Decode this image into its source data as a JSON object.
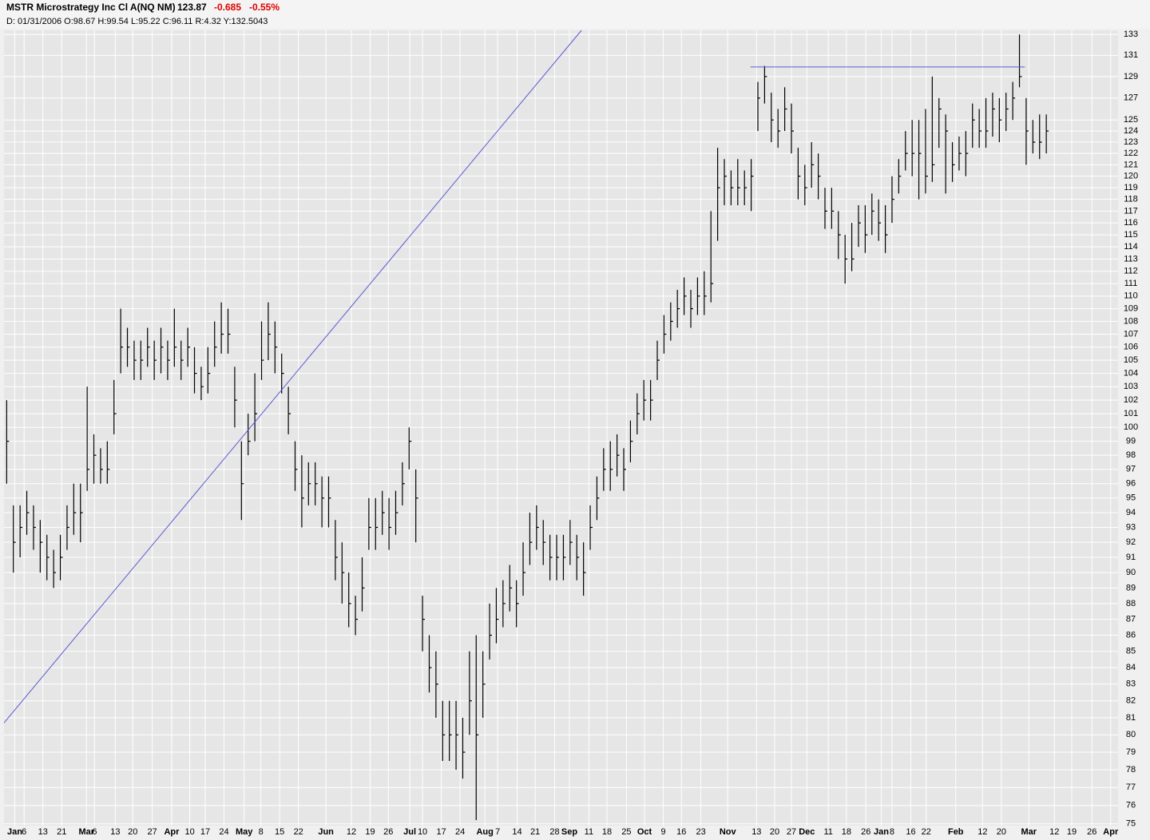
{
  "chart_data": {
    "type": "ohlc",
    "title": "MSTR Microstrategy Inc Cl A(NQ NM)",
    "last": "123.87",
    "change": "-0.685",
    "change_pct": "-0.55%",
    "info": "D: 01/31/2006 O:98.67 H:99.54 L:95.22 C:96.11 R:4.32 Y:132.5043",
    "log_scale": true,
    "grid": true,
    "color": "#000000",
    "ylim": [
      74.9,
      133.4
    ],
    "yticks": [
      75,
      76,
      77,
      78,
      79,
      80,
      81,
      82,
      83,
      84,
      85,
      86,
      87,
      88,
      89,
      90,
      91,
      92,
      93,
      94,
      95,
      96,
      97,
      98,
      99,
      100,
      101,
      102,
      103,
      104,
      105,
      106,
      107,
      108,
      109,
      110,
      111,
      112,
      113,
      114,
      115,
      116,
      117,
      118,
      119,
      120,
      121,
      122,
      123,
      124,
      125,
      127,
      129,
      131,
      133
    ],
    "xlim": [
      -0.4,
      165.7
    ],
    "xticks": [
      {
        "value": 1.2,
        "label": "Jan"
      },
      {
        "value": 2.6,
        "label": "6"
      },
      {
        "value": 5.4,
        "label": "13"
      },
      {
        "value": 8.2,
        "label": "21"
      },
      {
        "value": 11.9,
        "label": "Mar"
      },
      {
        "value": 13.1,
        "label": "6"
      },
      {
        "value": 16.2,
        "label": "13"
      },
      {
        "value": 18.8,
        "label": "20"
      },
      {
        "value": 21.7,
        "label": "27"
      },
      {
        "value": 24.6,
        "label": "Apr"
      },
      {
        "value": 27.3,
        "label": "10"
      },
      {
        "value": 29.6,
        "label": "17"
      },
      {
        "value": 32.4,
        "label": "24"
      },
      {
        "value": 35.4,
        "label": "May"
      },
      {
        "value": 37.9,
        "label": "8"
      },
      {
        "value": 40.7,
        "label": "15"
      },
      {
        "value": 43.5,
        "label": "22"
      },
      {
        "value": 47.6,
        "label": "Jun"
      },
      {
        "value": 51.4,
        "label": "12"
      },
      {
        "value": 54.2,
        "label": "19"
      },
      {
        "value": 56.9,
        "label": "26"
      },
      {
        "value": 60.1,
        "label": "Jul"
      },
      {
        "value": 62,
        "label": "10"
      },
      {
        "value": 64.8,
        "label": "17"
      },
      {
        "value": 67.6,
        "label": "24"
      },
      {
        "value": 71.3,
        "label": "Aug"
      },
      {
        "value": 73.2,
        "label": "7"
      },
      {
        "value": 76.1,
        "label": "14"
      },
      {
        "value": 78.8,
        "label": "21"
      },
      {
        "value": 81.7,
        "label": "28"
      },
      {
        "value": 83.9,
        "label": "Sep"
      },
      {
        "value": 86.8,
        "label": "11"
      },
      {
        "value": 89.5,
        "label": "18"
      },
      {
        "value": 92.4,
        "label": "25"
      },
      {
        "value": 95.1,
        "label": "Oct"
      },
      {
        "value": 97.9,
        "label": "9"
      },
      {
        "value": 100.6,
        "label": "16"
      },
      {
        "value": 103.5,
        "label": "23"
      },
      {
        "value": 107.5,
        "label": "Nov"
      },
      {
        "value": 111.8,
        "label": "13"
      },
      {
        "value": 114.5,
        "label": "20"
      },
      {
        "value": 117,
        "label": "27"
      },
      {
        "value": 119.3,
        "label": "Dec"
      },
      {
        "value": 122.5,
        "label": "11"
      },
      {
        "value": 125.2,
        "label": "18"
      },
      {
        "value": 128.1,
        "label": "26"
      },
      {
        "value": 130.4,
        "label": "Jan"
      },
      {
        "value": 132,
        "label": "8"
      },
      {
        "value": 134.8,
        "label": "16"
      },
      {
        "value": 137.1,
        "label": "22"
      },
      {
        "value": 141.5,
        "label": "Feb"
      },
      {
        "value": 145.5,
        "label": "12"
      },
      {
        "value": 148.3,
        "label": "20"
      },
      {
        "value": 152.4,
        "label": "Mar"
      },
      {
        "value": 156.2,
        "label": "12"
      },
      {
        "value": 158.8,
        "label": "19"
      },
      {
        "value": 161.8,
        "label": "26"
      },
      {
        "value": 164.6,
        "label": "Apr"
      }
    ],
    "high": [
      102,
      94.5,
      94.5,
      95.5,
      94.5,
      93.5,
      92.5,
      91.5,
      92.5,
      94.5,
      96,
      96,
      103,
      99.5,
      98.5,
      99,
      103.5,
      109,
      107.5,
      106.5,
      106.5,
      107.5,
      106.5,
      107.5,
      106.5,
      109,
      106.5,
      107.5,
      106,
      104.5,
      106,
      108,
      109.5,
      109,
      104.5,
      99,
      101,
      104,
      108,
      109.5,
      108,
      105.5,
      103,
      99,
      98,
      97.5,
      97.5,
      96.5,
      96.5,
      93.5,
      92,
      90,
      88.5,
      91,
      95,
      95,
      95.5,
      95,
      95.5,
      97.5,
      100,
      97,
      88.5,
      86,
      85,
      82,
      82,
      82,
      81,
      85,
      86,
      85,
      88,
      89,
      89.5,
      90.5,
      89.5,
      92,
      94,
      94.5,
      93.5,
      92.5,
      92.5,
      92.5,
      93.5,
      92.5,
      92,
      94.5,
      96.5,
      98.5,
      99,
      99.5,
      98.5,
      100.5,
      102.5,
      103.5,
      103.5,
      106.5,
      108.5,
      109.5,
      110.5,
      111.5,
      110.5,
      111.5,
      112,
      117,
      122.5,
      121.5,
      120.5,
      121.5,
      120.5,
      121.5,
      128.5,
      130,
      127.5,
      126,
      128,
      126.5,
      122.5,
      121,
      123,
      122,
      119,
      119,
      117,
      115,
      116,
      117.5,
      117.5,
      118.5,
      118,
      117.5,
      120,
      121.5,
      124,
      125,
      125,
      126,
      129,
      127,
      125.5,
      123,
      123.5,
      124,
      126.5,
      126,
      127,
      127.5,
      127,
      127.5,
      128.5,
      133,
      127,
      125,
      125.5,
      125.5
    ],
    "low": [
      96,
      90,
      91,
      92.5,
      91.5,
      90,
      89.5,
      89,
      89.5,
      91.5,
      92.5,
      92,
      95.5,
      96,
      96,
      96,
      99.5,
      104,
      104.5,
      103.5,
      103.5,
      104.5,
      103.5,
      104,
      103.5,
      104.5,
      103.5,
      104.5,
      102.5,
      102,
      102.5,
      104.5,
      105.5,
      105.5,
      100,
      93.5,
      98,
      99,
      103.5,
      105,
      104,
      102.5,
      99.5,
      95.5,
      93,
      94.5,
      94.5,
      93,
      93,
      89.5,
      88,
      86.5,
      86,
      87.5,
      91.5,
      91.5,
      92.5,
      91.5,
      92.5,
      94.5,
      97,
      92,
      85,
      82.5,
      81,
      78.5,
      78.5,
      78,
      77.5,
      80,
      75.2,
      81,
      84.5,
      85.5,
      86.5,
      87.5,
      86.5,
      88.5,
      90.5,
      91.5,
      90.5,
      89.5,
      89.5,
      89.5,
      90.5,
      89.5,
      88.5,
      91.5,
      93.5,
      95.5,
      95.5,
      96.5,
      95.5,
      97.5,
      99.5,
      100.5,
      100.5,
      103.5,
      105.5,
      106.5,
      107.5,
      108.5,
      107.5,
      108.5,
      108.5,
      109.5,
      114.5,
      117.5,
      117.5,
      117.5,
      117.5,
      117,
      124,
      126.5,
      123,
      122.5,
      124,
      122,
      118,
      117.5,
      119,
      118,
      115.5,
      115.5,
      113,
      111,
      112,
      114,
      113.5,
      115,
      114.5,
      113.5,
      116,
      118.5,
      120.5,
      120,
      118,
      118.5,
      119.5,
      122.5,
      118.5,
      119.5,
      120.5,
      120,
      122.5,
      122.5,
      122.5,
      123.5,
      123,
      124,
      125,
      128,
      121,
      122,
      121.5,
      122
    ],
    "close": [
      99,
      92,
      93,
      94,
      93,
      92,
      91,
      90,
      91,
      93,
      94,
      94,
      97,
      98,
      97,
      97,
      101,
      106,
      106,
      105,
      105,
      106,
      105,
      106,
      105,
      106,
      105,
      106,
      104,
      103,
      104,
      106,
      107,
      107,
      102,
      96,
      99,
      101,
      105,
      107,
      106,
      104,
      101,
      97,
      95,
      96,
      96,
      95,
      95,
      91,
      90,
      88,
      87,
      89,
      93,
      93,
      94,
      93,
      94,
      96,
      99,
      95,
      87,
      84,
      83,
      80,
      80,
      80,
      79,
      82,
      80,
      83,
      86,
      87,
      88,
      89,
      88,
      90,
      92,
      93,
      92,
      91,
      91,
      91,
      92,
      91,
      90,
      93,
      95,
      97,
      97,
      98,
      97,
      99,
      101,
      102,
      102,
      105,
      107,
      108,
      109,
      110,
      109,
      110,
      110,
      111,
      119,
      120,
      119,
      119,
      119,
      120,
      127,
      129,
      125,
      124,
      126,
      124,
      120,
      119,
      121,
      120,
      117,
      117,
      115,
      113,
      113,
      116,
      115,
      117,
      116,
      115,
      118,
      120,
      122,
      122,
      122,
      120,
      121,
      126,
      124,
      121,
      122,
      122,
      125,
      124,
      124,
      126,
      125,
      126,
      127,
      129,
      124,
      123,
      123,
      124
    ],
    "trendlines": [
      {
        "color": "#5a5ad2",
        "points": [
          [
            -0.4,
            80.7
          ],
          [
            85.7,
            133.4
          ]
        ]
      },
      {
        "color": "#5a5ad2",
        "points": [
          [
            110.9,
            129.9
          ],
          [
            151.8,
            129.9
          ]
        ]
      }
    ]
  }
}
